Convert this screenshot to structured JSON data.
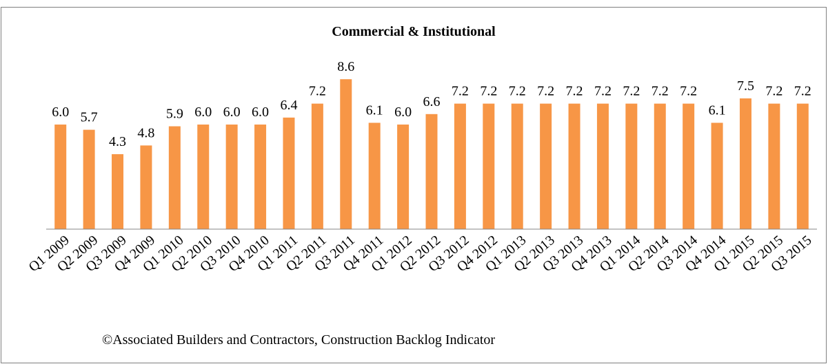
{
  "chart_data": {
    "type": "bar",
    "title": "Commercial & Institutional",
    "categories": [
      "Q1 2009",
      "Q2 2009",
      "Q3 2009",
      "Q4 2009",
      "Q1 2010",
      "Q2 2010",
      "Q3 2010",
      "Q4 2010",
      "Q1 2011",
      "Q2 2011",
      "Q3 2011",
      "Q4 2011",
      "Q1 2012",
      "Q2 2012",
      "Q3 2012",
      "Q4 2012",
      "Q1 2013",
      "Q2 2013",
      "Q3 2013",
      "Q4 2013",
      "Q1 2014",
      "Q2 2014",
      "Q3 2014",
      "Q4 2014",
      "Q1 2015",
      "Q2 2015",
      "Q3 2015"
    ],
    "values": [
      6.0,
      5.7,
      4.3,
      4.8,
      5.9,
      6.0,
      6.0,
      6.0,
      6.4,
      7.2,
      8.6,
      6.1,
      6.0,
      6.6,
      7.2,
      7.2,
      7.2,
      7.2,
      7.2,
      7.2,
      7.2,
      7.2,
      7.2,
      6.1,
      7.5,
      7.2,
      7.2
    ],
    "value_labels": [
      "6.0",
      "5.7",
      "4.3",
      "4.8",
      "5.9",
      "6.0",
      "6.0",
      "6.0",
      "6.4",
      "7.2",
      "8.6",
      "6.1",
      "6.0",
      "6.6",
      "7.2",
      "7.2",
      "7.2",
      "7.2",
      "7.2",
      "7.2",
      "7.2",
      "7.2",
      "7.2",
      "6.1",
      "7.5",
      "7.2",
      "7.2"
    ],
    "color": "#f79646",
    "ylim": [
      0,
      9
    ],
    "source": "©Associated Builders and Contractors, Construction Backlog Indicator"
  }
}
